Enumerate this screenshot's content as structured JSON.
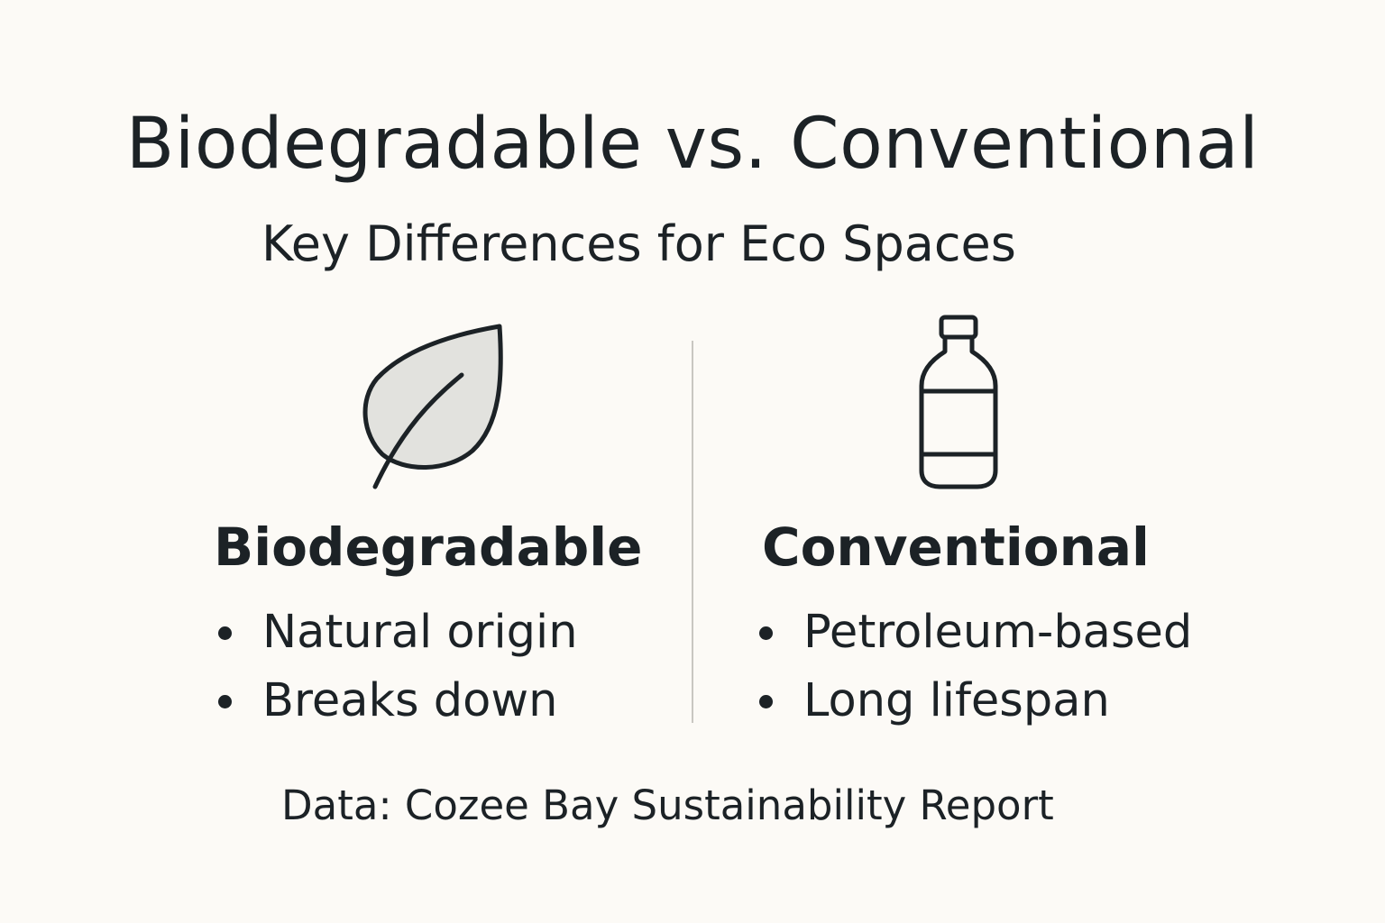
{
  "title": "Biodegradable vs. Conventional",
  "subtitle": "Key Differences for Eco Spaces",
  "columns": [
    {
      "heading": "Biodegradable",
      "icon": "leaf-icon",
      "bullets": [
        "Natural origin",
        "Breaks down"
      ]
    },
    {
      "heading": "Conventional",
      "icon": "bottle-icon",
      "bullets": [
        "Petroleum-based",
        "Long lifespan"
      ]
    }
  ],
  "source": "Data: Cozee Bay Sustainability Report",
  "colors": {
    "background": "#fcfaf6",
    "text": "#1c2226",
    "leaf_fill": "#e2e2de",
    "divider": "#c9c7c1"
  }
}
